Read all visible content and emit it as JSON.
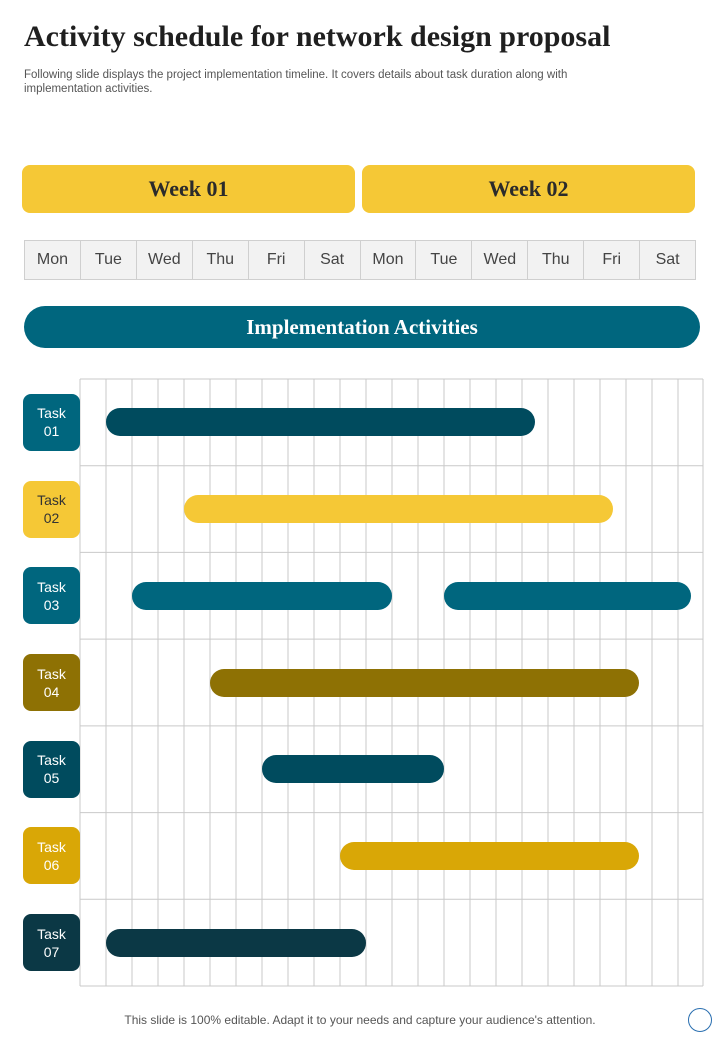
{
  "title": "Activity schedule for network design proposal",
  "subtitle": "Following slide displays the project implementation timeline. It covers details about task duration along with implementation activities.",
  "weeks": [
    "Week 01",
    "Week 02"
  ],
  "days": [
    "Mon",
    "Tue",
    "Wed",
    "Thu",
    "Fri",
    "Sat",
    "Mon",
    "Tue",
    "Wed",
    "Thu",
    "Fri",
    "Sat"
  ],
  "banner": "Implementation Activities",
  "footer": "This slide is 100% editable. Adapt it to your needs and capture your audience's attention.",
  "colors": {
    "yellow": "#F5C836",
    "teal": "#00667E",
    "navy_teal": "#004B5E",
    "olive": "#8E7104",
    "gold": "#D9A706",
    "dark": "#0B3845",
    "grid": "#C9C9C9",
    "day_bg": "#F2F2F2"
  },
  "chart_data": {
    "type": "gantt",
    "grid_columns": 24,
    "tasks": [
      {
        "label": "Task\n01",
        "label_color": "#00667E",
        "bars": [
          {
            "start": 0,
            "end": 16.5
          }
        ],
        "bar_color": "#004B5E"
      },
      {
        "label": "Task\n02",
        "label_color": "#F5C836",
        "bars": [
          {
            "start": 3,
            "end": 19.5
          }
        ],
        "bar_color": "#F5C836"
      },
      {
        "label": "Task\n03",
        "label_color": "#00667E",
        "bars": [
          {
            "start": 1,
            "end": 11
          },
          {
            "start": 13,
            "end": 22.5
          }
        ],
        "bar_color": "#00667E"
      },
      {
        "label": "Task\n04",
        "label_color": "#8E7104",
        "bars": [
          {
            "start": 4,
            "end": 20.5
          }
        ],
        "bar_color": "#8E7104"
      },
      {
        "label": "Task\n05",
        "label_color": "#004B5E",
        "bars": [
          {
            "start": 6,
            "end": 13
          }
        ],
        "bar_color": "#004B5E"
      },
      {
        "label": "Task\n06",
        "label_color": "#D9A706",
        "bars": [
          {
            "start": 9,
            "end": 20.5
          }
        ],
        "bar_color": "#D9A706"
      },
      {
        "label": "Task\n07",
        "label_color": "#0B3845",
        "bars": [
          {
            "start": 0,
            "end": 10
          }
        ],
        "bar_color": "#0B3845"
      }
    ]
  }
}
